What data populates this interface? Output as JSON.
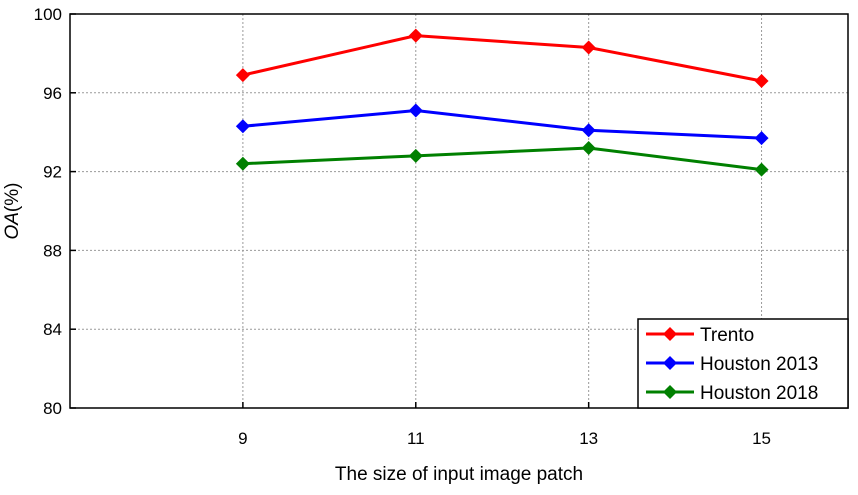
{
  "chart_data": {
    "type": "line",
    "x": [
      9,
      11,
      13,
      15
    ],
    "x_tick_labels": [
      "9",
      "11",
      "13",
      "15"
    ],
    "xlim": [
      7,
      16
    ],
    "ylim": [
      80,
      100
    ],
    "y_ticks": [
      80,
      84,
      88,
      92,
      96,
      100
    ],
    "y_tick_labels": [
      "80",
      "84",
      "88",
      "92",
      "96",
      "100"
    ],
    "xlabel": "The size of input image patch",
    "ylabel_main": "OA",
    "ylabel_unit": "(%)",
    "grid": true,
    "legend_position": "bottom-right",
    "series": [
      {
        "name": "Trento",
        "color": "#ff0000",
        "marker": "diamond",
        "values": [
          96.9,
          98.9,
          98.3,
          96.6
        ]
      },
      {
        "name": "Houston 2013",
        "color": "#0000ff",
        "marker": "diamond",
        "values": [
          94.3,
          95.1,
          94.1,
          93.7
        ]
      },
      {
        "name": "Houston 2018",
        "color": "#008000",
        "marker": "diamond",
        "values": [
          92.4,
          92.8,
          93.2,
          92.1
        ]
      }
    ]
  }
}
